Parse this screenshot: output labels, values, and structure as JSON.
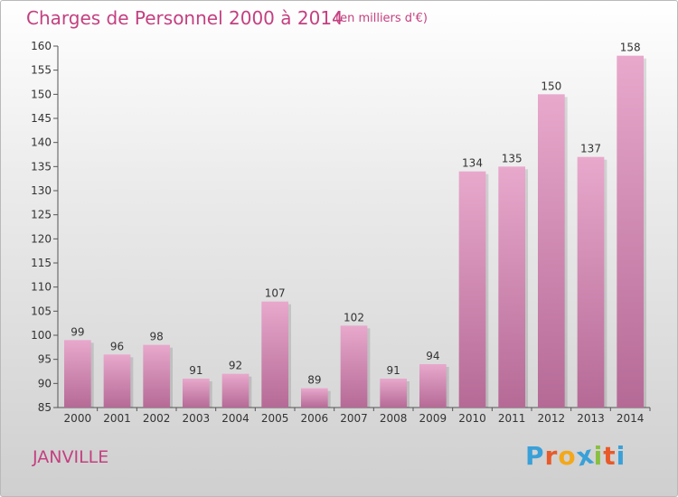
{
  "header": {
    "title": "Charges de Personnel 2000 à 2014",
    "unit": "(en milliers d'€)"
  },
  "commune": "JANVILLE",
  "logo": {
    "letters": [
      "P",
      "r",
      "o",
      "x",
      "i",
      "t",
      "i"
    ],
    "colors": [
      "#3aa0d8",
      "#e85a2a",
      "#f3a81b",
      "#3aa0d8",
      "#88c040",
      "#e85a2a",
      "#3aa0d8"
    ]
  },
  "colors": {
    "bar_top": "#e8a8cc",
    "bar_bottom": "#b56a96",
    "text": "#c44080"
  },
  "chart_data": {
    "type": "bar",
    "title": "Charges de Personnel 2000 à 2014",
    "ylabel": "",
    "xlabel": "",
    "categories": [
      "2000",
      "2001",
      "2002",
      "2003",
      "2004",
      "2005",
      "2006",
      "2007",
      "2008",
      "2009",
      "2010",
      "2011",
      "2012",
      "2013",
      "2014"
    ],
    "values": [
      99,
      96,
      98,
      91,
      92,
      107,
      89,
      102,
      91,
      94,
      134,
      135,
      150,
      137,
      158
    ],
    "ylim": [
      85,
      160
    ],
    "yticks": [
      85,
      90,
      95,
      100,
      105,
      110,
      115,
      120,
      125,
      130,
      135,
      140,
      145,
      150,
      155,
      160
    ],
    "grid": false,
    "legend": "none"
  }
}
